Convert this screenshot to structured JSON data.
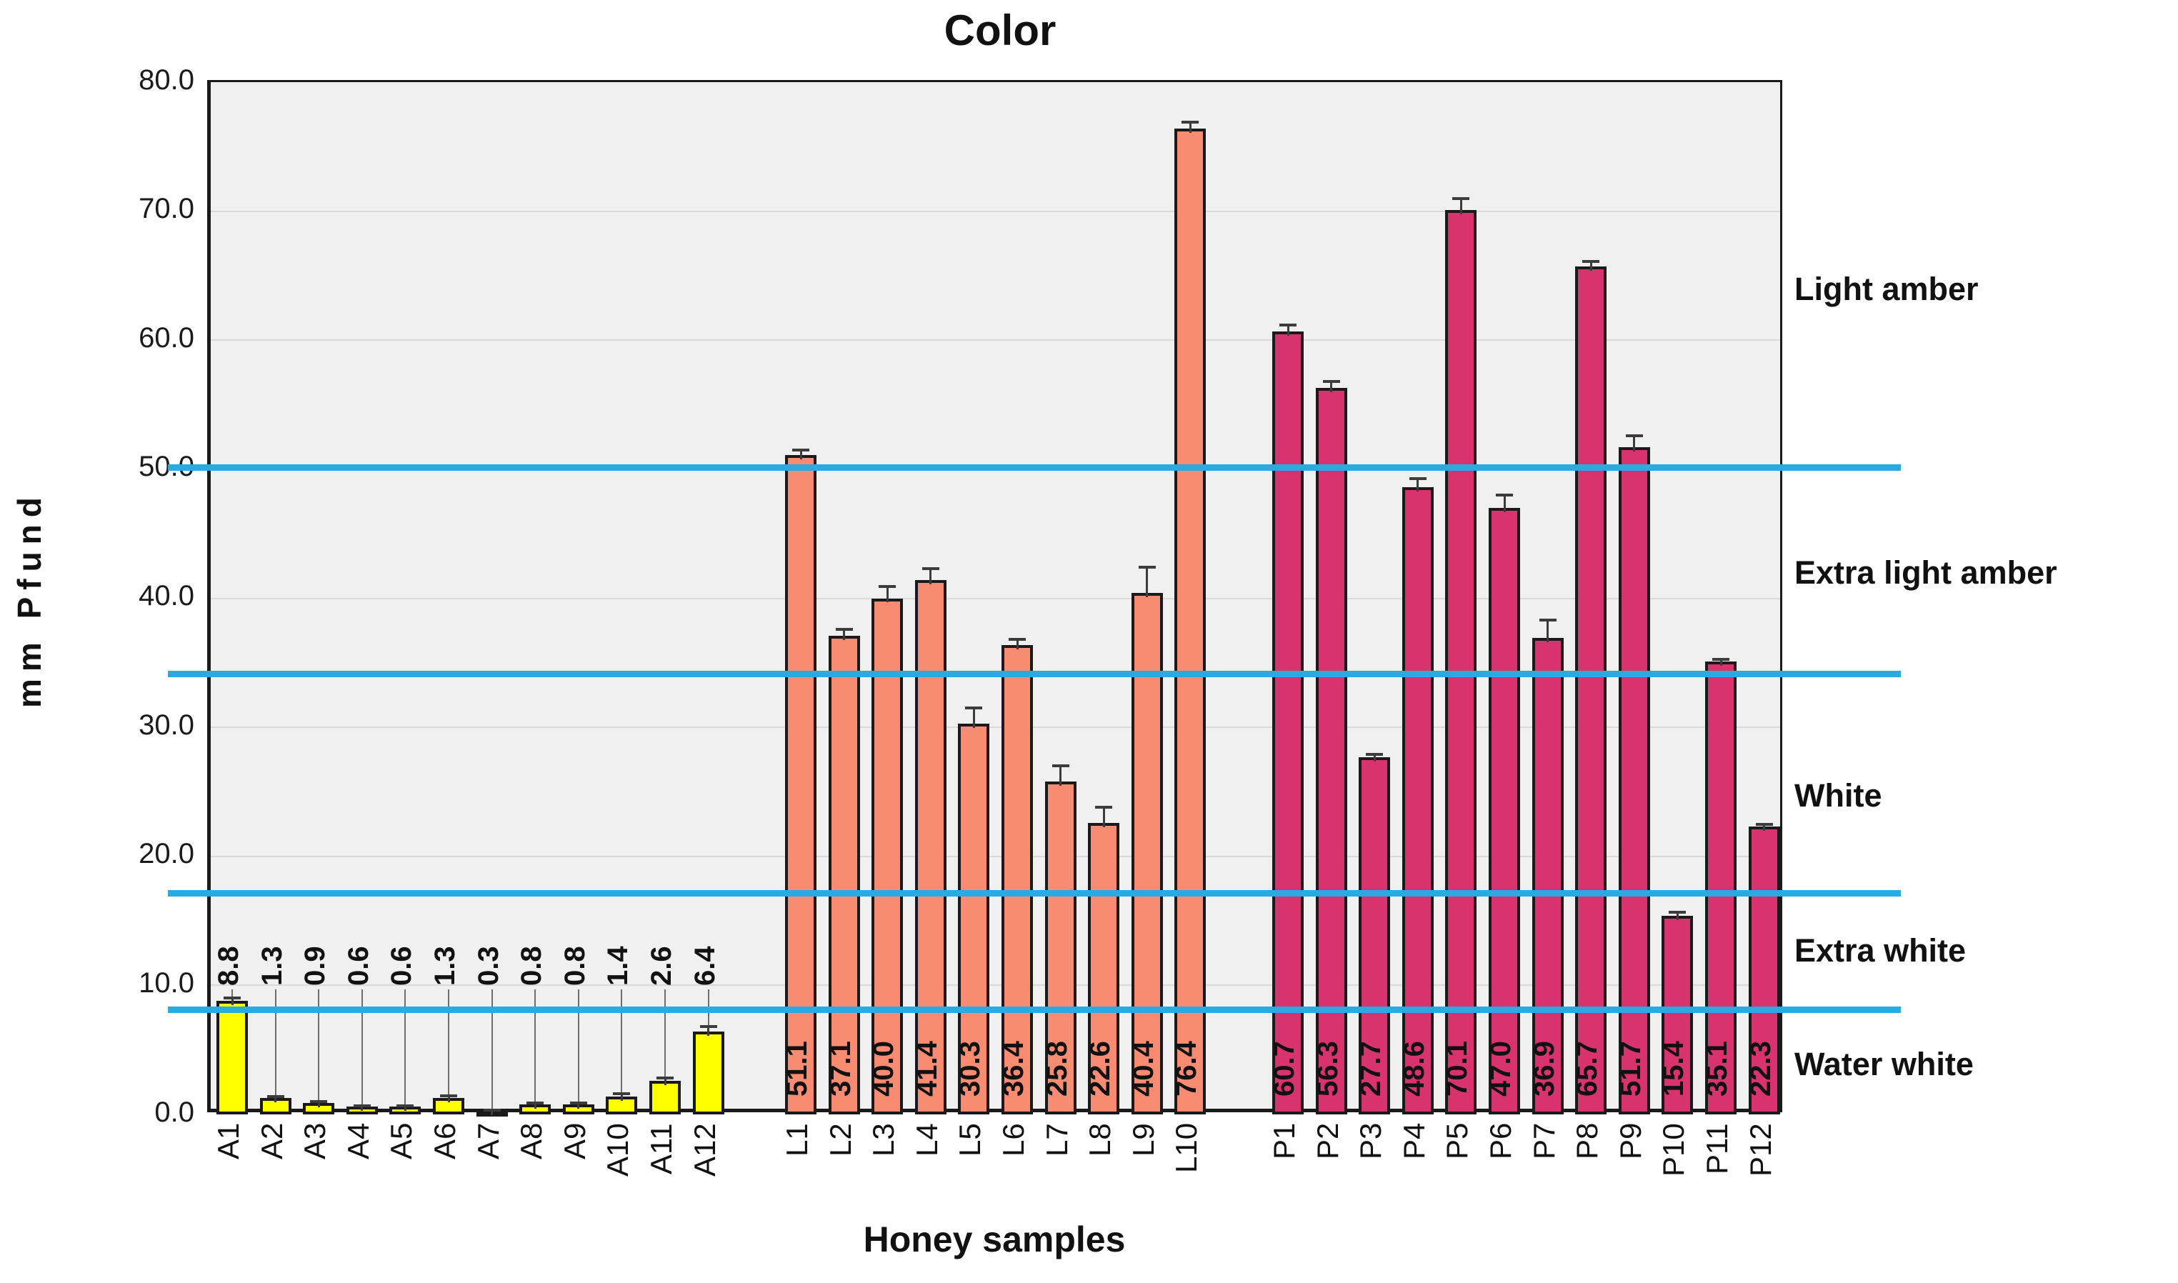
{
  "title": "Color",
  "x_axis": {
    "label": "Honey samples"
  },
  "y_axis": {
    "label": "mm Pfund",
    "tick_labels": [
      "0.0",
      "10.0",
      "20.0",
      "30.0",
      "40.0",
      "50.0",
      "60.0",
      "70.0",
      "80.0"
    ],
    "max": 80
  },
  "pfund_classes": [
    {
      "label": "Light amber",
      "label_y_value": 63.8
    },
    {
      "label": "Extra light amber",
      "label_y_value": 41.8
    },
    {
      "label": "White",
      "label_y_value": 24.5
    },
    {
      "label": "Extra white",
      "label_y_value": 12.5
    },
    {
      "label": "Water white",
      "label_y_value": 3.7
    }
  ],
  "colors": {
    "series_a": "#ffff00",
    "series_l": "#f78c72",
    "series_p": "#d8336e",
    "boundary_line": "#29abe2",
    "plot_background": "#f0f0f0",
    "gridline": "#d9d9d9",
    "bar_outline": "#1a1a1a",
    "error_bar": "#3c3c3c"
  },
  "chart_data": {
    "type": "bar",
    "title": "Color",
    "xlabel": "Honey samples",
    "ylabel": "mm Pfund",
    "ylim": [
      0,
      80
    ],
    "ytick_step": 10,
    "grid": true,
    "boundary_lines": {
      "color": "#29abe2",
      "values": [
        50,
        34,
        17,
        8
      ]
    },
    "series": [
      {
        "name": "A",
        "color": "#ffff00",
        "label_position": "above",
        "categories": [
          "A1",
          "A2",
          "A3",
          "A4",
          "A5",
          "A6",
          "A7",
          "A8",
          "A9",
          "A10",
          "A11",
          "A12"
        ],
        "values": [
          8.8,
          1.3,
          0.9,
          0.6,
          0.6,
          1.3,
          0.3,
          0.8,
          0.8,
          1.4,
          2.6,
          6.4
        ],
        "errors": [
          0.25,
          0.1,
          0.1,
          0.08,
          0.08,
          0.12,
          0.05,
          0.1,
          0.1,
          0.2,
          0.25,
          0.4
        ],
        "data_labels": [
          "8.8",
          "1.3",
          "0.9",
          "0.6",
          "0.6",
          "1.3",
          "0.3",
          "0.8",
          "0.8",
          "1.4",
          "2.6",
          "6.4"
        ]
      },
      {
        "name": "L",
        "color": "#f78c72",
        "label_position": "inside",
        "categories": [
          "L1",
          "L2",
          "L3",
          "L4",
          "L5",
          "L6",
          "L7",
          "L8",
          "L9",
          "L10"
        ],
        "values": [
          51.1,
          37.1,
          40.0,
          41.4,
          30.3,
          36.4,
          25.8,
          22.6,
          40.4,
          76.4
        ],
        "errors": [
          0.4,
          0.5,
          0.9,
          0.9,
          1.2,
          0.4,
          1.2,
          1.2,
          2.0,
          0.5
        ],
        "data_labels": [
          "51.1",
          "37.1",
          "40.0",
          "41.4",
          "30.3",
          "36.4",
          "25.8",
          "22.6",
          "40.4",
          "76.4"
        ]
      },
      {
        "name": "P",
        "color": "#d8336e",
        "label_position": "inside",
        "categories": [
          "P1",
          "P2",
          "P3",
          "P4",
          "P5",
          "P6",
          "P7",
          "P8",
          "P9",
          "P10",
          "P11",
          "P12"
        ],
        "values": [
          60.7,
          56.3,
          27.7,
          48.6,
          70.1,
          47.0,
          36.9,
          65.7,
          51.7,
          15.4,
          35.1,
          22.3
        ],
        "errors": [
          0.5,
          0.5,
          0.2,
          0.7,
          0.9,
          1.0,
          1.4,
          0.4,
          0.9,
          0.25,
          0.15,
          0.15
        ],
        "data_labels": [
          "60.7",
          "56.3",
          "27.7",
          "48.6",
          "70.1",
          "47.0",
          "36.9",
          "65.7",
          "51.7",
          "15.4",
          "35.1",
          "22.3"
        ]
      }
    ],
    "right_labels": [
      "Light amber",
      "Extra light amber",
      "White",
      "Extra white",
      "Water white"
    ]
  }
}
